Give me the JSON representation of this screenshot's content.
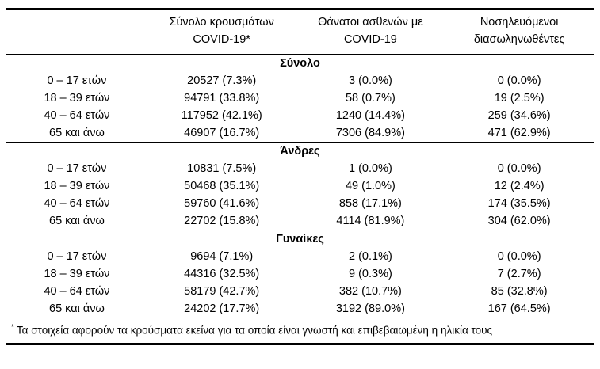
{
  "table": {
    "columns": [
      {
        "line1": "Σύνολο κρουσμάτων",
        "line2": "COVID-19*"
      },
      {
        "line1": "Θάνατοι ασθενών με",
        "line2": "COVID-19"
      },
      {
        "line1": "Νοσηλευόμενοι",
        "line2": "διασωληνωθέντες"
      }
    ],
    "sections": [
      {
        "title": "Σύνολο",
        "rows": [
          {
            "label": "0 – 17 ετών",
            "cases": "20527 (7.3%)",
            "deaths": "3 (0.0%)",
            "intubated": "0 (0.0%)"
          },
          {
            "label": "18 – 39 ετών",
            "cases": "94791 (33.8%)",
            "deaths": "58 (0.7%)",
            "intubated": "19 (2.5%)"
          },
          {
            "label": "40 – 64 ετών",
            "cases": "117952 (42.1%)",
            "deaths": "1240 (14.4%)",
            "intubated": "259 (34.6%)"
          },
          {
            "label": "65 και άνω",
            "cases": "46907 (16.7%)",
            "deaths": "7306 (84.9%)",
            "intubated": "471 (62.9%)"
          }
        ]
      },
      {
        "title": "Άνδρες",
        "rows": [
          {
            "label": "0 – 17 ετών",
            "cases": "10831 (7.5%)",
            "deaths": "1 (0.0%)",
            "intubated": "0 (0.0%)"
          },
          {
            "label": "18 – 39 ετών",
            "cases": "50468 (35.1%)",
            "deaths": "49 (1.0%)",
            "intubated": "12 (2.4%)"
          },
          {
            "label": "40 – 64 ετών",
            "cases": "59760 (41.6%)",
            "deaths": "858 (17.1%)",
            "intubated": "174 (35.5%)"
          },
          {
            "label": "65 και άνω",
            "cases": "22702 (15.8%)",
            "deaths": "4114 (81.9%)",
            "intubated": "304 (62.0%)"
          }
        ]
      },
      {
        "title": "Γυναίκες",
        "rows": [
          {
            "label": "0 – 17 ετών",
            "cases": "9694 (7.1%)",
            "deaths": "2 (0.1%)",
            "intubated": "0 (0.0%)"
          },
          {
            "label": "18 – 39 ετών",
            "cases": "44316 (32.5%)",
            "deaths": "9 (0.3%)",
            "intubated": "7 (2.7%)"
          },
          {
            "label": "40 – 64 ετών",
            "cases": "58179 (42.7%)",
            "deaths": "382 (10.7%)",
            "intubated": "85 (32.8%)"
          },
          {
            "label": "65 και άνω",
            "cases": "24202 (17.7%)",
            "deaths": "3192 (89.0%)",
            "intubated": "167 (64.5%)"
          }
        ]
      }
    ],
    "footnote_marker": "*",
    "footnote": "Τα στοιχεία αφορούν τα κρούσματα εκείνα για τα οποία είναι γνωστή και επιβεβαιωμένη η ηλικία τους"
  }
}
